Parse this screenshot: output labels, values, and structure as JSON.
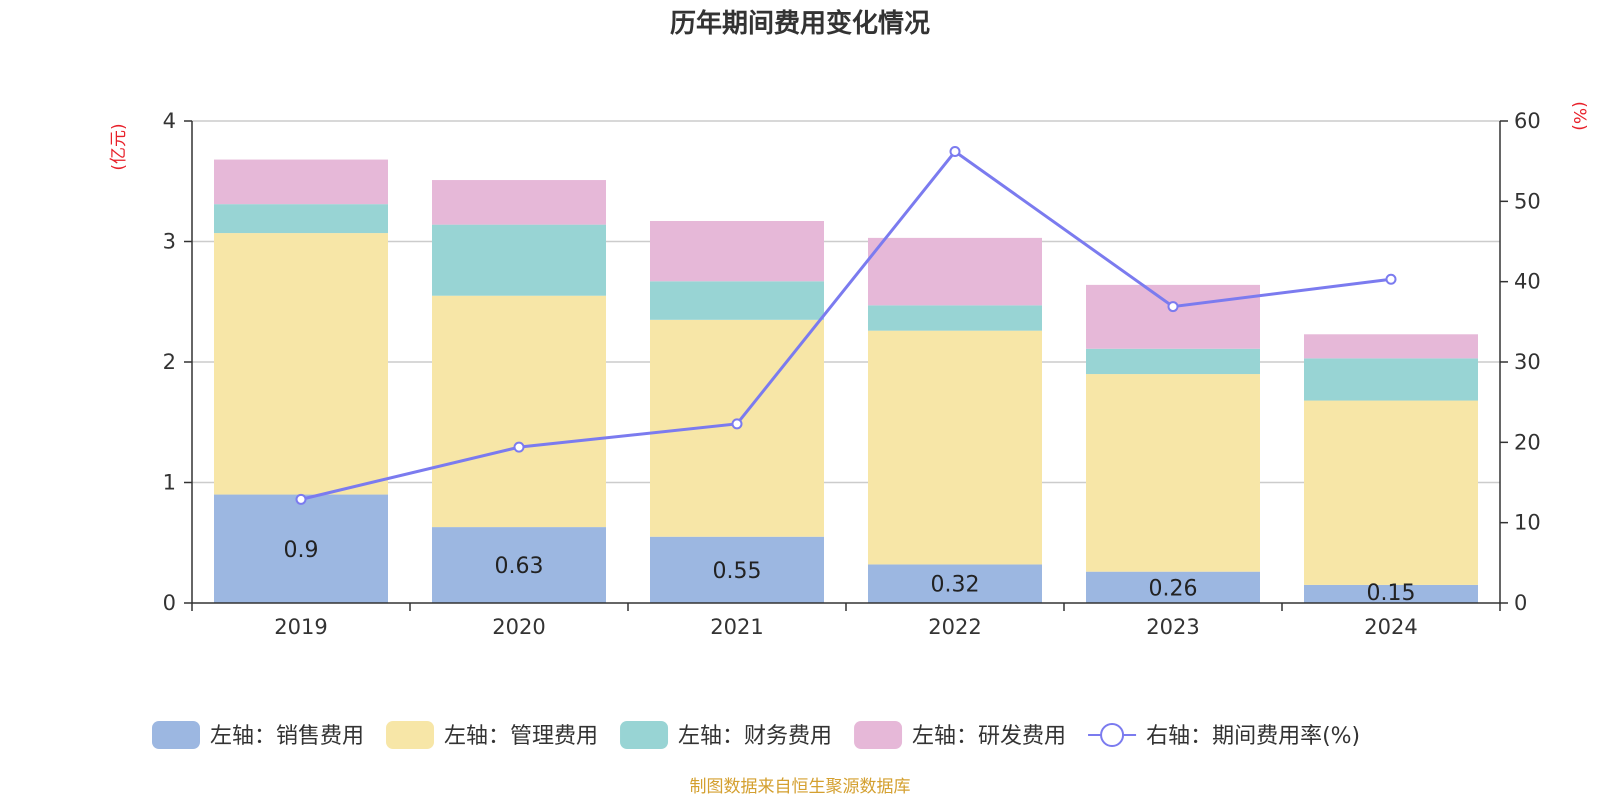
{
  "chart_data": {
    "type": "bar",
    "stacked": true,
    "title": "历年期间费用变化情况",
    "categories": [
      "2019",
      "2020",
      "2021",
      "2022",
      "2023",
      "2024"
    ],
    "left_axis": {
      "unit": "(亿元)",
      "ylim": [
        0,
        4
      ],
      "ticks": [
        "0",
        "1",
        "2",
        "3",
        "4"
      ]
    },
    "right_axis": {
      "unit": "(%)",
      "ylim": [
        0,
        60
      ],
      "ticks": [
        "0",
        "10",
        "20",
        "30",
        "40",
        "50",
        "60"
      ]
    },
    "series": [
      {
        "name": "左轴：销售费用",
        "axis": "left",
        "type": "bar",
        "color": "#9cb7e1",
        "values": [
          0.9,
          0.63,
          0.55,
          0.32,
          0.26,
          0.15
        ],
        "labels": [
          "0.9",
          "0.63",
          "0.55",
          "0.32",
          "0.26",
          "0.15"
        ]
      },
      {
        "name": "左轴：管理费用",
        "axis": "left",
        "type": "bar",
        "color": "#f7e6a7",
        "values": [
          2.17,
          1.92,
          1.8,
          1.94,
          1.64,
          1.53
        ]
      },
      {
        "name": "左轴：财务费用",
        "axis": "left",
        "type": "bar",
        "color": "#98d4d4",
        "values": [
          0.24,
          0.59,
          0.32,
          0.21,
          0.21,
          0.35
        ]
      },
      {
        "name": "左轴：研发费用",
        "axis": "left",
        "type": "bar",
        "color": "#e6b8d8",
        "values": [
          0.37,
          0.37,
          0.5,
          0.56,
          0.53,
          0.2
        ]
      },
      {
        "name": "右轴：期间费用率(%)",
        "axis": "right",
        "type": "line",
        "color": "#7b7bef",
        "values": [
          12.9,
          19.4,
          22.3,
          56.2,
          36.9,
          40.3
        ]
      }
    ],
    "legend_position": "bottom",
    "grid": true
  },
  "source": "制图数据来自恒生聚源数据库",
  "colors": {
    "axis_unit": "#e8202a",
    "source_text": "#d4a030",
    "axis_line": "#333333",
    "grid_line": "#cccccc"
  }
}
